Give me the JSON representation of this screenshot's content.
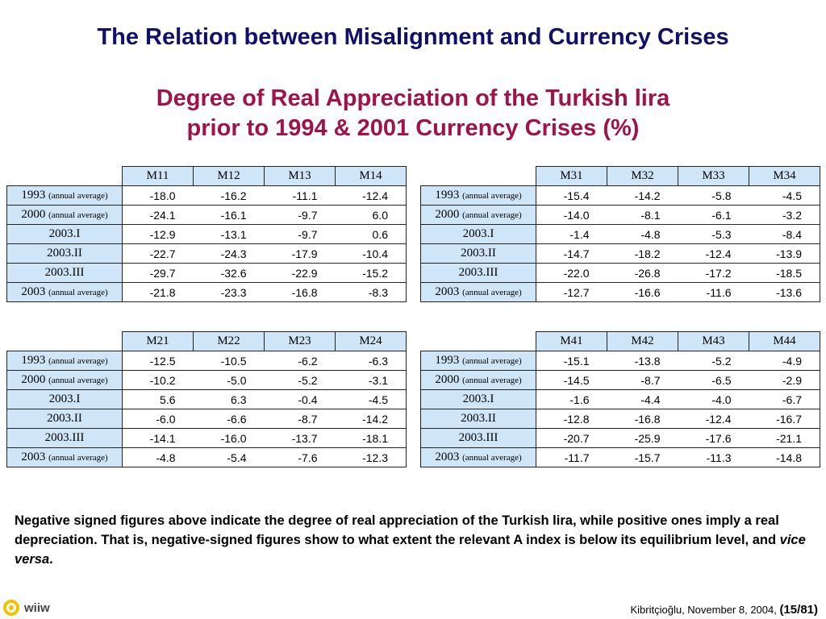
{
  "title": "The Relation between Misalignment and Currency Crises",
  "subtitle_line1": "Degree of Real Appreciation of the Turkish lira",
  "subtitle_line2": "prior to 1994 & 2001 Currency Crises (%)",
  "rows": [
    {
      "main": "1993",
      "small": "(annual average)"
    },
    {
      "main": "2000",
      "small": "(annual average)"
    },
    {
      "main": "2003.I",
      "small": ""
    },
    {
      "main": "2003.II",
      "small": ""
    },
    {
      "main": "2003.III",
      "small": ""
    },
    {
      "main": "2003",
      "small": "(annual average)"
    }
  ],
  "tables": [
    {
      "cols": [
        "M11",
        "M12",
        "M13",
        "M14"
      ],
      "values": [
        [
          "-18.0",
          "-16.2",
          "-11.1",
          "-12.4"
        ],
        [
          "-24.1",
          "-16.1",
          "-9.7",
          "6.0"
        ],
        [
          "-12.9",
          "-13.1",
          "-9.7",
          "0.6"
        ],
        [
          "-22.7",
          "-24.3",
          "-17.9",
          "-10.4"
        ],
        [
          "-29.7",
          "-32.6",
          "-22.9",
          "-15.2"
        ],
        [
          "-21.8",
          "-23.3",
          "-16.8",
          "-8.3"
        ]
      ]
    },
    {
      "cols": [
        "M31",
        "M32",
        "M33",
        "M34"
      ],
      "values": [
        [
          "-15.4",
          "-14.2",
          "-5.8",
          "-4.5"
        ],
        [
          "-14.0",
          "-8.1",
          "-6.1",
          "-3.2"
        ],
        [
          "-1.4",
          "-4.8",
          "-5.3",
          "-8.4"
        ],
        [
          "-14.7",
          "-18.2",
          "-12.4",
          "-13.9"
        ],
        [
          "-22.0",
          "-26.8",
          "-17.2",
          "-18.5"
        ],
        [
          "-12.7",
          "-16.6",
          "-11.6",
          "-13.6"
        ]
      ]
    },
    {
      "cols": [
        "M21",
        "M22",
        "M23",
        "M24"
      ],
      "values": [
        [
          "-12.5",
          "-10.5",
          "-6.2",
          "-6.3"
        ],
        [
          "-10.2",
          "-5.0",
          "-5.2",
          "-3.1"
        ],
        [
          "5.6",
          "6.3",
          "-0.4",
          "-4.5"
        ],
        [
          "-6.0",
          "-6.6",
          "-8.7",
          "-14.2"
        ],
        [
          "-14.1",
          "-16.0",
          "-13.7",
          "-18.1"
        ],
        [
          "-4.8",
          "-5.4",
          "-7.6",
          "-12.3"
        ]
      ]
    },
    {
      "cols": [
        "M41",
        "M42",
        "M43",
        "M44"
      ],
      "values": [
        [
          "-15.1",
          "-13.8",
          "-5.2",
          "-4.9"
        ],
        [
          "-14.5",
          "-8.7",
          "-6.5",
          "-2.9"
        ],
        [
          "-1.6",
          "-4.4",
          "-4.0",
          "-6.7"
        ],
        [
          "-12.8",
          "-16.8",
          "-12.4",
          "-16.7"
        ],
        [
          "-20.7",
          "-25.9",
          "-17.6",
          "-21.1"
        ],
        [
          "-11.7",
          "-15.7",
          "-11.3",
          "-14.8"
        ]
      ]
    }
  ],
  "note": {
    "text": "Negative signed figures above indicate the degree of real appreciation of the Turkish lira, while positive ones imply a real depreciation. That is, negative-signed figures show to what extent the relevant A index is below its equilibrium level, and ",
    "italic": "vice versa",
    "end": "."
  },
  "logo": {
    "text": "wiiw",
    "icon": "wiiw-logo-icon",
    "color": "#f2c200"
  },
  "footer": {
    "text": "Kibritçioğlu, November 8, 2004, ",
    "page": "(15/81)"
  }
}
